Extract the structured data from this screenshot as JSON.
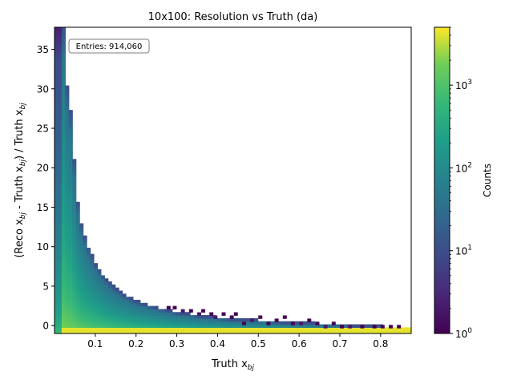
{
  "chart_data": {
    "type": "heatmap",
    "title": "10x100: Resolution vs Truth (da)",
    "xlabel": {
      "base": "Truth x",
      "sub": "bj"
    },
    "ylabel": {
      "parts": [
        {
          "t": "(Reco x",
          "sub": false
        },
        {
          "t": "bj",
          "sub": true
        },
        {
          "t": " - Truth x",
          "sub": false
        },
        {
          "t": "bj",
          "sub": true
        },
        {
          "t": ") / Truth x",
          "sub": false
        },
        {
          "t": "bj",
          "sub": true
        }
      ]
    },
    "entries_label": "Entries: 914,060",
    "xlim": [
      0.0,
      0.875
    ],
    "ylim": [
      -1.0,
      37.8
    ],
    "x_ticks": [
      {
        "v": 0.1,
        "label": "0.1"
      },
      {
        "v": 0.2,
        "label": "0.2"
      },
      {
        "v": 0.3,
        "label": "0.3"
      },
      {
        "v": 0.4,
        "label": "0.4"
      },
      {
        "v": 0.5,
        "label": "0.5"
      },
      {
        "v": 0.6,
        "label": "0.6"
      },
      {
        "v": 0.7,
        "label": "0.7"
      },
      {
        "v": 0.8,
        "label": "0.8"
      }
    ],
    "y_ticks": [
      {
        "v": 0,
        "label": "0"
      },
      {
        "v": 5,
        "label": "5"
      },
      {
        "v": 10,
        "label": "10"
      },
      {
        "v": 15,
        "label": "15"
      },
      {
        "v": 20,
        "label": "20"
      },
      {
        "v": 25,
        "label": "25"
      },
      {
        "v": 30,
        "label": "30"
      },
      {
        "v": 35,
        "label": "35"
      }
    ],
    "colorbar": {
      "label": "Counts",
      "scale": "log",
      "range": [
        1,
        5000
      ],
      "colormap": "viridis",
      "ticks": [
        {
          "v": 1,
          "base": "10",
          "exp": "0"
        },
        {
          "v": 10,
          "base": "10",
          "exp": "1"
        },
        {
          "v": 100,
          "base": "10",
          "exp": "2"
        },
        {
          "v": 1000,
          "base": "10",
          "exp": "3"
        }
      ]
    },
    "x_bin_width": 0.00875,
    "y_bin_height": 0.388,
    "envelope": [
      {
        "x": 0.0,
        "top": 37.8
      },
      {
        "x": 0.025,
        "top": 37.8
      },
      {
        "x": 0.03,
        "top": 30.5
      },
      {
        "x": 0.04,
        "top": 27.0
      },
      {
        "x": 0.045,
        "top": 23.5
      },
      {
        "x": 0.05,
        "top": 19.5
      },
      {
        "x": 0.055,
        "top": 16.5
      },
      {
        "x": 0.06,
        "top": 14.2
      },
      {
        "x": 0.07,
        "top": 12.0
      },
      {
        "x": 0.08,
        "top": 10.2
      },
      {
        "x": 0.09,
        "top": 9.0
      },
      {
        "x": 0.1,
        "top": 7.8
      },
      {
        "x": 0.12,
        "top": 6.2
      },
      {
        "x": 0.14,
        "top": 5.0
      },
      {
        "x": 0.16,
        "top": 4.2
      },
      {
        "x": 0.18,
        "top": 3.6
      },
      {
        "x": 0.2,
        "top": 3.0
      },
      {
        "x": 0.25,
        "top": 2.2
      },
      {
        "x": 0.3,
        "top": 1.6
      },
      {
        "x": 0.35,
        "top": 1.2
      },
      {
        "x": 0.4,
        "top": 0.9
      },
      {
        "x": 0.45,
        "top": 0.7
      },
      {
        "x": 0.5,
        "top": 0.55
      },
      {
        "x": 0.6,
        "top": 0.25
      },
      {
        "x": 0.7,
        "top": 0.05
      },
      {
        "x": 0.8,
        "top": -0.2
      },
      {
        "x": 0.875,
        "top": -0.4
      }
    ],
    "sparse_cells": [
      {
        "x": 0.275,
        "y": 2.1,
        "c": 1
      },
      {
        "x": 0.29,
        "y": 2.1,
        "c": 1
      },
      {
        "x": 0.31,
        "y": 1.7,
        "c": 2
      },
      {
        "x": 0.33,
        "y": 1.7,
        "c": 1
      },
      {
        "x": 0.35,
        "y": 1.3,
        "c": 2
      },
      {
        "x": 0.36,
        "y": 1.7,
        "c": 1
      },
      {
        "x": 0.38,
        "y": 1.3,
        "c": 1
      },
      {
        "x": 0.39,
        "y": 0.9,
        "c": 2
      },
      {
        "x": 0.41,
        "y": 1.3,
        "c": 1
      },
      {
        "x": 0.43,
        "y": 0.9,
        "c": 1
      },
      {
        "x": 0.44,
        "y": 1.3,
        "c": 1
      },
      {
        "x": 0.46,
        "y": 0.1,
        "c": 1
      },
      {
        "x": 0.48,
        "y": 0.5,
        "c": 2
      },
      {
        "x": 0.5,
        "y": 0.9,
        "c": 1
      },
      {
        "x": 0.52,
        "y": 0.1,
        "c": 1
      },
      {
        "x": 0.54,
        "y": 0.5,
        "c": 1
      },
      {
        "x": 0.56,
        "y": 0.9,
        "c": 1
      },
      {
        "x": 0.58,
        "y": 0.1,
        "c": 1
      },
      {
        "x": 0.6,
        "y": 0.1,
        "c": 2
      },
      {
        "x": 0.62,
        "y": 0.5,
        "c": 1
      },
      {
        "x": 0.64,
        "y": 0.1,
        "c": 1
      },
      {
        "x": 0.66,
        "y": -0.3,
        "c": 2
      },
      {
        "x": 0.68,
        "y": 0.1,
        "c": 1
      },
      {
        "x": 0.7,
        "y": -0.3,
        "c": 1
      },
      {
        "x": 0.72,
        "y": -0.3,
        "c": 2
      },
      {
        "x": 0.75,
        "y": -0.3,
        "c": 1
      },
      {
        "x": 0.78,
        "y": -0.3,
        "c": 1
      },
      {
        "x": 0.8,
        "y": -0.3,
        "c": 1
      },
      {
        "x": 0.82,
        "y": -0.3,
        "c": 1
      },
      {
        "x": 0.84,
        "y": -0.3,
        "c": 1
      }
    ],
    "grid": false,
    "legend": "none"
  }
}
